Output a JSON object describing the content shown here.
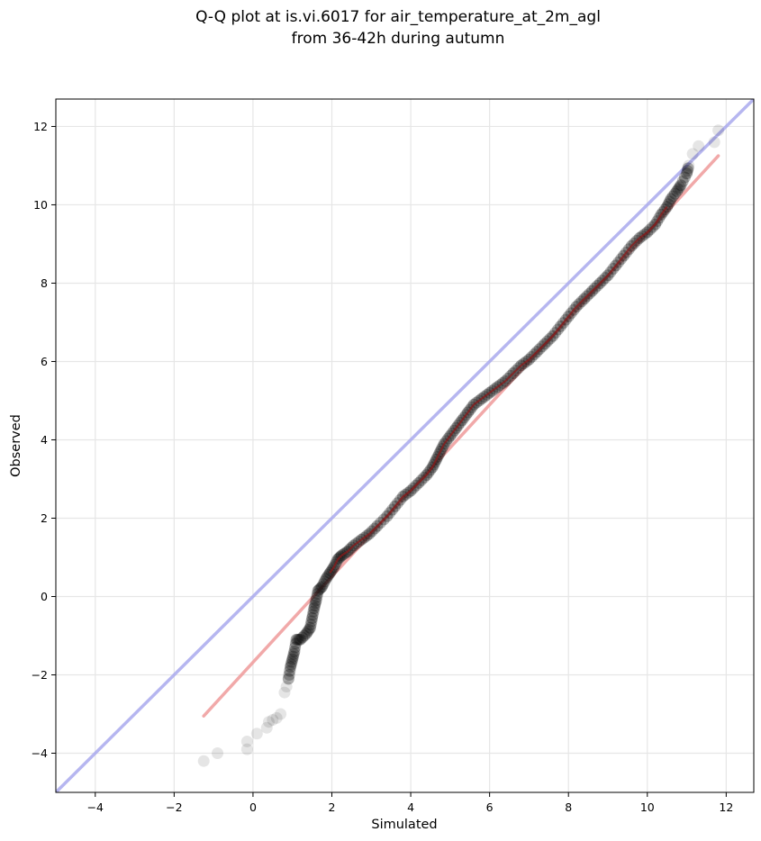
{
  "chart_data": {
    "type": "scatter",
    "title_lines": [
      "Q-Q plot at is.vi.6017 for air_temperature_at_2m_agl",
      "from 36-42h during autumn"
    ],
    "xlabel": "Simulated",
    "ylabel": "Observed",
    "xlim": [
      -5,
      12.7
    ],
    "ylim": [
      -5,
      12.7
    ],
    "xticks": [
      -4,
      -2,
      0,
      2,
      4,
      6,
      8,
      10,
      12
    ],
    "yticks": [
      -4,
      -2,
      0,
      2,
      4,
      6,
      8,
      10,
      12
    ],
    "xtick_labels": [
      "−4",
      "−2",
      "0",
      "2",
      "4",
      "6",
      "8",
      "10",
      "12"
    ],
    "ytick_labels": [
      "−4",
      "−2",
      "0",
      "2",
      "4",
      "6",
      "8",
      "10",
      "12"
    ],
    "grid": true,
    "reference_line": {
      "x": [
        -5,
        12.7
      ],
      "y": [
        -5,
        12.7
      ],
      "color": "#aaaaee"
    },
    "fit_line": {
      "x": [
        -1.25,
        11.8
      ],
      "y": [
        -3.05,
        11.25
      ],
      "color": "#f0a0a0"
    },
    "quantile_curve_color": "#8b1a1a",
    "point_color": "#000000",
    "quantile_points": [
      [
        -1.25,
        -4.2
      ],
      [
        -0.9,
        -4.0
      ],
      [
        -0.15,
        -3.9
      ],
      [
        -0.15,
        -3.7
      ],
      [
        0.1,
        -3.5
      ],
      [
        0.35,
        -3.35
      ],
      [
        0.4,
        -3.2
      ],
      [
        0.5,
        -3.15
      ],
      [
        0.6,
        -3.1
      ],
      [
        0.7,
        -3.0
      ],
      [
        0.8,
        -2.45
      ],
      [
        0.85,
        -2.3
      ],
      [
        0.9,
        -2.1
      ],
      [
        0.95,
        -1.8
      ],
      [
        1.0,
        -1.6
      ],
      [
        1.05,
        -1.4
      ],
      [
        1.1,
        -1.1
      ],
      [
        1.2,
        -1.1
      ],
      [
        1.35,
        -0.95
      ],
      [
        1.45,
        -0.8
      ],
      [
        1.5,
        -0.55
      ],
      [
        1.55,
        -0.3
      ],
      [
        1.6,
        -0.1
      ],
      [
        1.65,
        0.15
      ],
      [
        1.75,
        0.25
      ],
      [
        1.85,
        0.45
      ],
      [
        1.95,
        0.6
      ],
      [
        2.05,
        0.75
      ],
      [
        2.15,
        0.95
      ],
      [
        2.25,
        1.05
      ],
      [
        2.4,
        1.15
      ],
      [
        2.55,
        1.3
      ],
      [
        2.75,
        1.45
      ],
      [
        2.95,
        1.6
      ],
      [
        3.15,
        1.8
      ],
      [
        3.4,
        2.05
      ],
      [
        3.6,
        2.3
      ],
      [
        3.8,
        2.55
      ],
      [
        4.0,
        2.7
      ],
      [
        4.2,
        2.9
      ],
      [
        4.4,
        3.1
      ],
      [
        4.55,
        3.3
      ],
      [
        4.65,
        3.5
      ],
      [
        4.75,
        3.7
      ],
      [
        4.85,
        3.9
      ],
      [
        5.0,
        4.1
      ],
      [
        5.15,
        4.3
      ],
      [
        5.3,
        4.5
      ],
      [
        5.45,
        4.7
      ],
      [
        5.6,
        4.9
      ],
      [
        5.8,
        5.05
      ],
      [
        6.0,
        5.2
      ],
      [
        6.2,
        5.35
      ],
      [
        6.4,
        5.5
      ],
      [
        6.6,
        5.7
      ],
      [
        6.8,
        5.9
      ],
      [
        7.0,
        6.05
      ],
      [
        7.2,
        6.25
      ],
      [
        7.4,
        6.45
      ],
      [
        7.6,
        6.65
      ],
      [
        7.8,
        6.9
      ],
      [
        8.0,
        7.15
      ],
      [
        8.2,
        7.4
      ],
      [
        8.4,
        7.6
      ],
      [
        8.6,
        7.8
      ],
      [
        8.8,
        8.0
      ],
      [
        9.0,
        8.2
      ],
      [
        9.2,
        8.45
      ],
      [
        9.4,
        8.7
      ],
      [
        9.6,
        8.95
      ],
      [
        9.8,
        9.15
      ],
      [
        10.0,
        9.3
      ],
      [
        10.2,
        9.5
      ],
      [
        10.35,
        9.75
      ],
      [
        10.5,
        9.95
      ],
      [
        10.6,
        10.15
      ],
      [
        10.75,
        10.35
      ],
      [
        10.85,
        10.5
      ],
      [
        11.0,
        10.8
      ],
      [
        11.05,
        11.0
      ],
      [
        11.15,
        11.3
      ],
      [
        11.3,
        11.5
      ],
      [
        11.7,
        11.6
      ],
      [
        11.8,
        11.9
      ]
    ]
  }
}
